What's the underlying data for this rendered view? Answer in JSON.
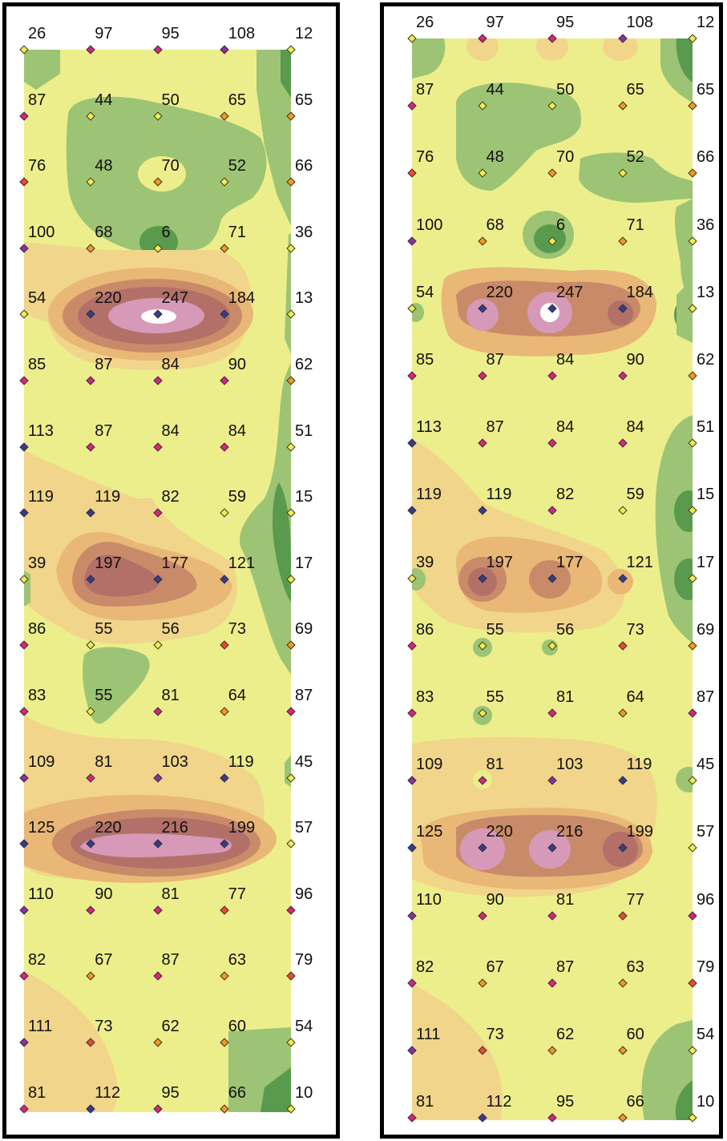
{
  "legend_colors": {
    "dark_green": "#5a9a4e",
    "green": "#9cc474",
    "yellow": "#ecee8c",
    "light_orange": "#f0d58a",
    "orange": "#e9b776",
    "brown": "#c98a6a",
    "dark_brown": "#b27068",
    "pink": "#d69ab8",
    "white": "#ffffff"
  },
  "marker_colors": {
    "yellow": "#f1ec4a",
    "orange": "#f29a1e",
    "red": "#ee4a2c",
    "magenta": "#d8247e",
    "purple": "#8e2ea0",
    "navy": "#3a3a8c"
  },
  "grid": {
    "columns": 5,
    "rows": 17,
    "values": [
      [
        26,
        97,
        95,
        108,
        12
      ],
      [
        87,
        44,
        50,
        65,
        65
      ],
      [
        76,
        48,
        70,
        52,
        66
      ],
      [
        100,
        68,
        6,
        71,
        36
      ],
      [
        54,
        220,
        247,
        184,
        13
      ],
      [
        85,
        87,
        84,
        90,
        62
      ],
      [
        113,
        87,
        84,
        84,
        51
      ],
      [
        119,
        119,
        82,
        59,
        15
      ],
      [
        39,
        197,
        177,
        121,
        17
      ],
      [
        86,
        55,
        56,
        73,
        69
      ],
      [
        83,
        55,
        81,
        64,
        87
      ],
      [
        109,
        81,
        103,
        119,
        45
      ],
      [
        125,
        220,
        216,
        199,
        57
      ],
      [
        110,
        90,
        81,
        77,
        96
      ],
      [
        82,
        67,
        87,
        63,
        79
      ],
      [
        111,
        73,
        62,
        60,
        54
      ],
      [
        81,
        112,
        95,
        66,
        10
      ]
    ]
  }
}
